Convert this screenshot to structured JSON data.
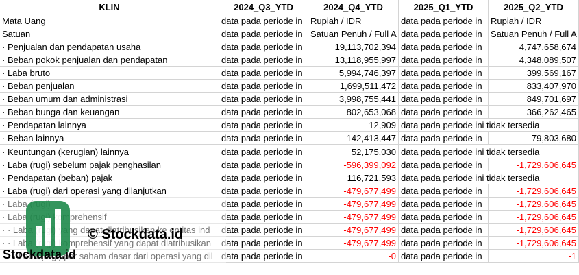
{
  "table": {
    "columns": [
      "KLIN",
      "2024_Q3_YTD",
      "2024_Q4_YTD",
      "2025_Q1_YTD",
      "2025_Q2_YTD"
    ],
    "rows": [
      [
        "Mata Uang",
        "data pada periode in",
        "Rupiah / IDR",
        "data pada periode in",
        "Rupiah / IDR"
      ],
      [
        "Satuan",
        "data pada periode in",
        "Satuan Penuh / Full A",
        "data pada periode in",
        "Satuan Penuh / Full A"
      ],
      [
        "· Penjualan dan pendapatan usaha",
        "data pada periode in",
        "19,113,702,394",
        "data pada periode in",
        "4,747,658,674"
      ],
      [
        "· Beban pokok penjualan dan pendapatan",
        "data pada periode in",
        "13,118,955,997",
        "data pada periode in",
        "4,348,089,507"
      ],
      [
        "· Laba bruto",
        "data pada periode in",
        "5,994,746,397",
        "data pada periode in",
        "399,569,167"
      ],
      [
        "· Beban penjualan",
        "data pada periode in",
        "1,699,511,472",
        "data pada periode in",
        "833,407,970"
      ],
      [
        "· Beban umum dan administrasi",
        "data pada periode in",
        "3,998,755,441",
        "data pada periode in",
        "849,701,697"
      ],
      [
        "· Beban bunga dan keuangan",
        "data pada periode in",
        "802,653,068",
        "data pada periode in",
        "366,262,465"
      ],
      [
        "· Pendapatan lainnya",
        "data pada periode in",
        "12,909",
        "data pada periode ini tidak tersedia",
        null
      ],
      [
        "· Beban lainnya",
        "data pada periode in",
        "142,413,447",
        "data pada periode in",
        "79,803,680"
      ],
      [
        "· Keuntungan (kerugian) lainnya",
        "data pada periode in",
        "52,175,030",
        "data pada periode ini tidak tersedia",
        null
      ],
      [
        "· Laba (rugi) sebelum pajak penghasilan",
        "data pada periode in",
        "-596,399,092",
        "data pada periode in",
        "-1,729,606,645"
      ],
      [
        "· Pendapatan (beban) pajak",
        "data pada periode in",
        "116,721,593",
        "data pada periode ini tidak tersedia",
        null
      ],
      [
        "· Laba (rugi) dari operasi yang dilanjutkan",
        "data pada periode in",
        "-479,677,499",
        "data pada periode in",
        "-1,729,606,645"
      ],
      [
        "· Laba (rugi)",
        "data pada periode in",
        "-479,677,499",
        "data pada periode in",
        "-1,729,606,645"
      ],
      [
        "· Laba (rugi) komprehensif",
        "data pada periode in",
        "-479,677,499",
        "data pada periode in",
        "-1,729,606,645"
      ],
      [
        "· · Laba (rugi) yang dapat diatribusikan ke entitas ind",
        "data pada periode in",
        "-479,677,499",
        "data pada periode in",
        "-1,729,606,645"
      ],
      [
        "· · Laba (rugi) komprehensif yang dapat diatribusikan",
        "data pada periode in",
        "-479,677,499",
        "data pada periode in",
        "-1,729,606,645"
      ],
      [
        "· · · Laba (rugi) per saham dasar dari operasi yang dil",
        "data pada periode in",
        "-0",
        "data pada periode in",
        "-1"
      ]
    ]
  },
  "watermark": {
    "caption": "© Stockdata.id",
    "brand": "Stockdata.id"
  }
}
